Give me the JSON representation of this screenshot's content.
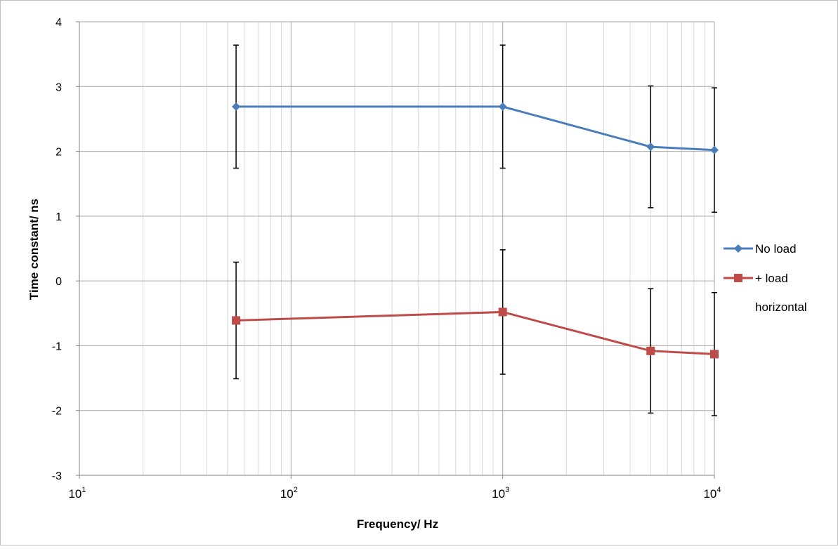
{
  "chart_data": {
    "type": "line",
    "title": "",
    "xlabel": "Frequency/ Hz",
    "ylabel": "Time constant/ ns",
    "x_scale": "log",
    "xlim": [
      10,
      10000
    ],
    "ylim": [
      -3,
      4
    ],
    "x_ticks": [
      {
        "value": 10,
        "base": "10",
        "exp": "1"
      },
      {
        "value": 100,
        "base": "10",
        "exp": "2"
      },
      {
        "value": 1000,
        "base": "10",
        "exp": "3"
      },
      {
        "value": 10000,
        "base": "10",
        "exp": "4"
      }
    ],
    "y_ticks": [
      "4",
      "3",
      "2",
      "1",
      "0",
      "-1",
      "-2",
      "-3"
    ],
    "grid": true,
    "legend_position": "right",
    "series": [
      {
        "name": "No load",
        "color": "#4a7ebb",
        "marker": "diamond",
        "x": [
          55,
          1000,
          5000,
          10000
        ],
        "y": [
          2.69,
          2.69,
          2.07,
          2.02
        ],
        "error": [
          0.95,
          0.95,
          0.94,
          0.96
        ]
      },
      {
        "name": "+ load horizontal",
        "legend_lines": [
          "+ load",
          "horizontal"
        ],
        "color": "#be4b48",
        "marker": "square",
        "x": [
          55,
          1000,
          5000,
          10000
        ],
        "y": [
          -0.61,
          -0.48,
          -1.08,
          -1.13
        ],
        "error": [
          0.9,
          0.96,
          0.96,
          0.95
        ]
      }
    ]
  }
}
